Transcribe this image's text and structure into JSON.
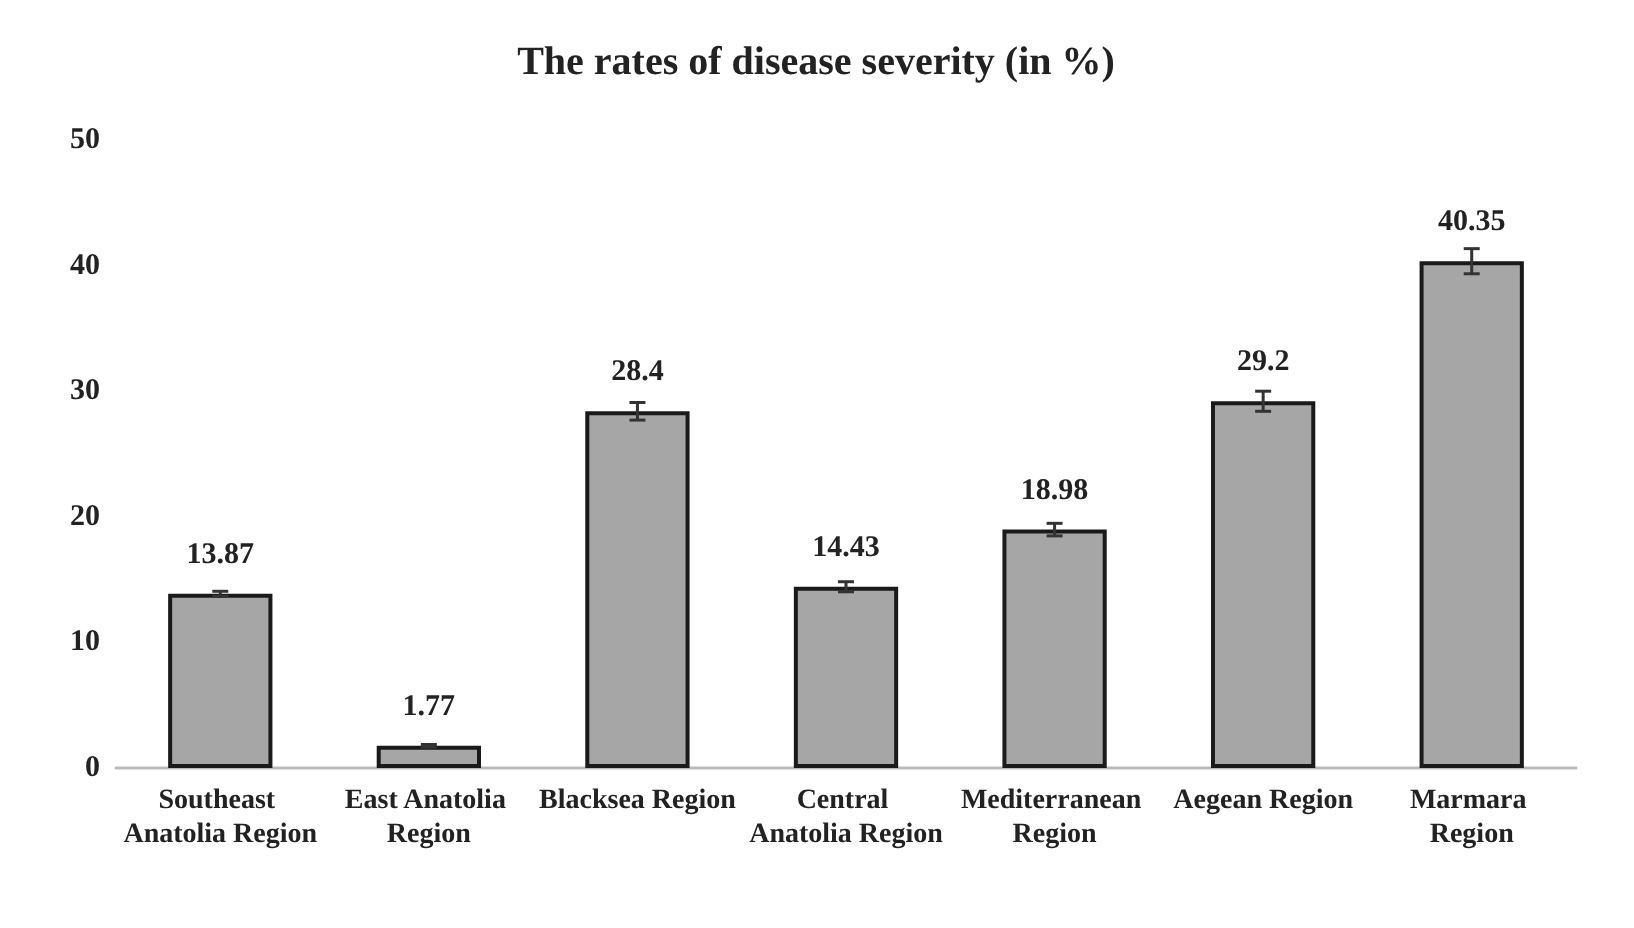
{
  "chart_data": {
    "type": "bar",
    "title": "The rates of disease severity (in %)",
    "categories": [
      "Southeast Anatolia Region",
      "East Anatolia Region",
      "Blacksea Region",
      "Central Anatolia Region",
      "Mediterranean Region",
      "Aegean Region",
      "Marmara Region"
    ],
    "values": [
      13.87,
      1.77,
      28.4,
      14.43,
      18.98,
      29.2,
      40.35
    ],
    "errors": [
      0.2,
      0.1,
      0.7,
      0.4,
      0.5,
      0.8,
      1.0
    ],
    "color": "#a6a6a6",
    "ylim": [
      0,
      50
    ],
    "yticks": [
      0,
      10,
      20,
      30,
      40,
      50
    ],
    "grid": false,
    "data_labels": true
  }
}
